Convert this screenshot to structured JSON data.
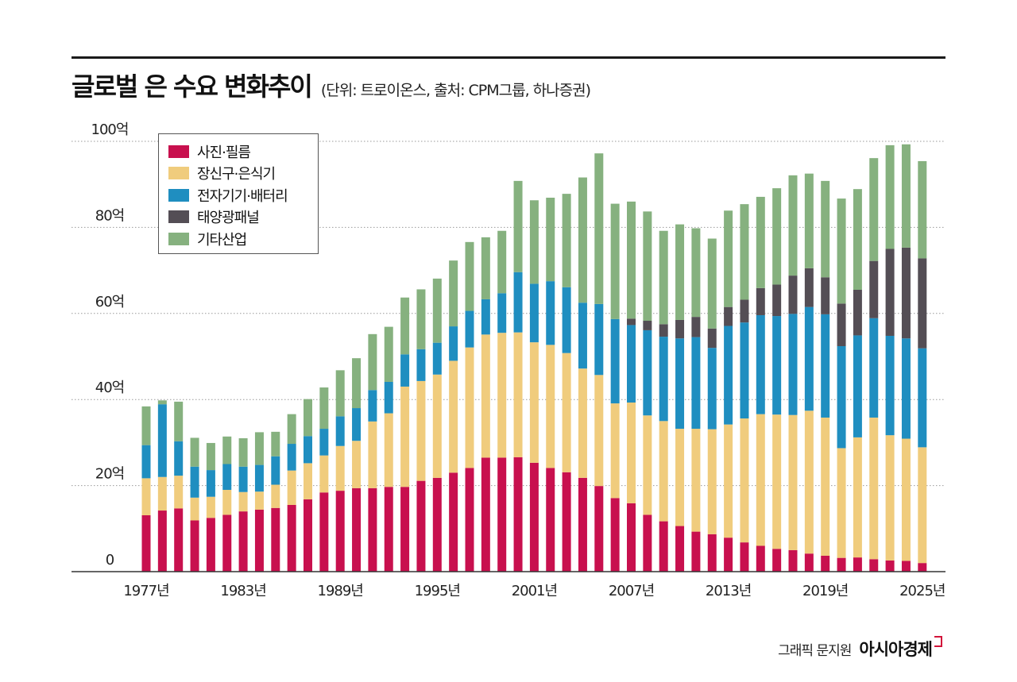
{
  "header": {
    "title": "글로벌 은 수요 변화추이",
    "subtitle": "(단위: 트로이온스, 출처: CPM그룹, 하나증권)"
  },
  "footer": {
    "credit": "그래픽 문지원",
    "brand": "아시아경제"
  },
  "chart_data": {
    "type": "bar",
    "stacked": true,
    "title": "글로벌 은 수요 변화추이",
    "unit_note": "(단위: 트로이온스, 출처: CPM그룹, 하나증권)",
    "grid": true,
    "grid_style": "dotted horizontal",
    "legend_position": "top-left",
    "ylim": [
      0,
      100
    ],
    "y_ticks": [
      0,
      20,
      40,
      60,
      80,
      100
    ],
    "y_tick_labels": [
      "0",
      "20억",
      "40억",
      "60억",
      "80억",
      "100억"
    ],
    "x_tick_labels": [
      {
        "index": 0,
        "label": "1977년"
      },
      {
        "index": 6,
        "label": "1983년"
      },
      {
        "index": 12,
        "label": "1989년"
      },
      {
        "index": 18,
        "label": "1995년"
      },
      {
        "index": 24,
        "label": "2001년"
      },
      {
        "index": 30,
        "label": "2007년"
      },
      {
        "index": 36,
        "label": "2013년"
      },
      {
        "index": 42,
        "label": "2019년"
      },
      {
        "index": 48,
        "label": "2025년"
      }
    ],
    "categories": [
      "1977",
      "1978",
      "1979",
      "1980",
      "1981",
      "1982",
      "1983",
      "1984",
      "1985",
      "1986",
      "1987",
      "1988",
      "1989",
      "1990",
      "1991",
      "1992",
      "1993",
      "1994",
      "1995",
      "1996",
      "1997",
      "1998",
      "1999",
      "2000",
      "2001",
      "2002",
      "2003",
      "2004",
      "2005",
      "2006",
      "2007",
      "2008",
      "2009",
      "2010",
      "2011",
      "2012",
      "2013",
      "2014",
      "2015",
      "2016",
      "2017",
      "2018",
      "2019",
      "2020",
      "2021",
      "2022",
      "2023",
      "2024",
      "2025"
    ],
    "series": [
      {
        "name": "사진·필름",
        "color": "#c8104e",
        "values": [
          13.1,
          14.2,
          14.7,
          11.9,
          12.5,
          13.2,
          14.0,
          14.4,
          14.8,
          15.5,
          16.8,
          18.4,
          18.8,
          19.4,
          19.4,
          19.7,
          19.7,
          21.1,
          21.8,
          23.0,
          24.1,
          26.5,
          26.5,
          26.6,
          25.3,
          24.1,
          23.1,
          21.8,
          19.9,
          17.1,
          15.9,
          13.2,
          11.7,
          10.6,
          9.3,
          8.7,
          7.9,
          6.8,
          6.0,
          5.3,
          5.0,
          4.2,
          3.7,
          3.2,
          3.3,
          2.9,
          2.6,
          2.5,
          2.0
        ]
      },
      {
        "name": "장신구·은식기",
        "color": "#f0cc7d",
        "values": [
          8.6,
          7.8,
          7.6,
          5.3,
          4.9,
          5.8,
          4.5,
          4.2,
          5.4,
          8.0,
          8.4,
          8.6,
          10.4,
          11.0,
          15.5,
          17.1,
          23.3,
          23.2,
          24.0,
          26.0,
          28.0,
          28.6,
          29.0,
          29.0,
          28.0,
          28.6,
          27.7,
          25.4,
          25.8,
          22.0,
          23.4,
          23.1,
          23.3,
          22.6,
          23.9,
          24.4,
          26.3,
          28.8,
          30.6,
          31.2,
          31.4,
          33.2,
          32.1,
          25.5,
          27.9,
          32.9,
          29.1,
          28.4,
          26.9
        ]
      },
      {
        "name": "전자기기·배터리",
        "color": "#1f8ec0",
        "values": [
          7.7,
          16.9,
          8.0,
          7.2,
          6.2,
          6.0,
          5.9,
          6.2,
          6.6,
          6.2,
          6.3,
          6.2,
          6.9,
          7.6,
          7.3,
          7.3,
          7.5,
          7.4,
          7.4,
          8.0,
          8.5,
          8.2,
          9.2,
          14.0,
          13.6,
          14.8,
          15.3,
          15.3,
          16.5,
          19.6,
          18.0,
          19.8,
          19.6,
          21.0,
          21.3,
          18.9,
          22.9,
          22.3,
          23.0,
          22.9,
          23.5,
          24.1,
          24.0,
          23.7,
          23.7,
          23.1,
          23.1,
          23.3,
          23.0
        ]
      },
      {
        "name": "태양광패널",
        "color": "#544e55",
        "values": [
          0,
          0,
          0,
          0,
          0,
          0,
          0,
          0,
          0,
          0,
          0,
          0,
          0,
          0,
          0,
          0,
          0,
          0,
          0,
          0,
          0,
          0,
          0,
          0,
          0,
          0,
          0,
          0,
          0,
          0,
          1.5,
          2.2,
          2.9,
          4.3,
          4.7,
          4.5,
          4.4,
          5.3,
          6.3,
          7.3,
          8.9,
          9.0,
          8.6,
          9.9,
          10.6,
          13.3,
          20.2,
          21.1,
          20.9
        ]
      },
      {
        "name": "기타산업",
        "color": "#86b17f",
        "values": [
          9.0,
          0.9,
          9.2,
          6.7,
          6.3,
          6.4,
          6.6,
          7.6,
          5.7,
          6.9,
          8.6,
          9.6,
          10.7,
          11.6,
          13.0,
          12.8,
          13.2,
          13.9,
          14.9,
          15.3,
          16.0,
          14.4,
          14.5,
          21.2,
          19.4,
          19.4,
          21.7,
          29.1,
          35.0,
          26.8,
          27.2,
          25.4,
          21.7,
          22.2,
          20.6,
          20.9,
          22.4,
          22.2,
          21.2,
          22.4,
          23.3,
          22.0,
          22.4,
          24.4,
          23.4,
          23.9,
          24.1,
          24.0,
          22.6
        ]
      }
    ]
  }
}
